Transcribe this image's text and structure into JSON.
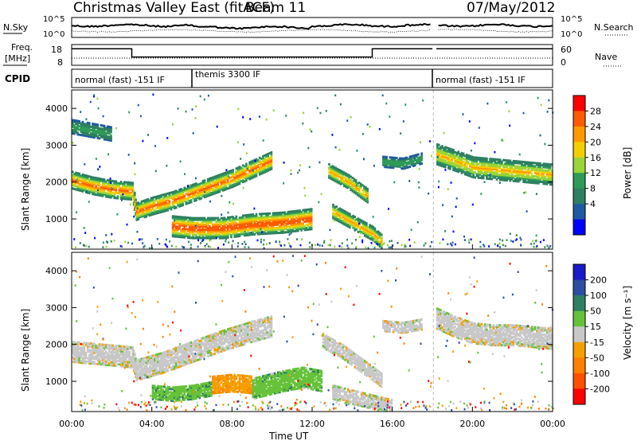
{
  "header": {
    "title": "Christmas Valley East (fitACF)",
    "beam": "Beam 11",
    "date": "07/May/2012"
  },
  "panels": {
    "nsky": {
      "left_label": "N.Sky",
      "left_ticks": [
        "10^5",
        "10^0"
      ],
      "right_label": "N.Search",
      "right_ticks": [
        "10^5",
        "10^0"
      ]
    },
    "freq": {
      "left_label_1": "Freq.",
      "left_label_2": "[MHz]",
      "left_ticks": [
        "18",
        "8"
      ],
      "right_label": "Nave",
      "right_ticks": [
        "60",
        "0"
      ],
      "step_levels_mhz": [
        {
          "from_h": 0.0,
          "to_h": 3.0,
          "mhz": 16
        },
        {
          "from_h": 3.0,
          "to_h": 15.0,
          "mhz": 12
        },
        {
          "from_h": 15.0,
          "to_h": 18.0,
          "mhz": 16
        },
        {
          "from_h": 18.2,
          "to_h": 24.0,
          "mhz": 16
        }
      ]
    },
    "cpid": {
      "label": "CPID",
      "segments": [
        {
          "label": "normal (fast) -151 IF",
          "from_h": 0.0,
          "to_h": 6.0
        },
        {
          "label": "themis 3300 IF",
          "from_h": 6.0,
          "to_h": 18.0
        },
        {
          "label": "normal (fast) -151 IF",
          "from_h": 18.0,
          "to_h": 24.0
        }
      ]
    }
  },
  "colorbars": {
    "power": {
      "label": "Power [dB]",
      "ticks": [
        "28",
        "24",
        "20",
        "16",
        "12",
        "8",
        "4"
      ],
      "colors": [
        "#ff0000",
        "#ff5a00",
        "#ff9a00",
        "#f2d000",
        "#9ad43a",
        "#2e9a58",
        "#2f7f62",
        "#1f5aa0",
        "#0000ff"
      ]
    },
    "velocity": {
      "label": "Velocity [m s⁻¹]",
      "ticks": [
        "200",
        "100",
        "50",
        "15",
        "-15",
        "-50",
        "-100",
        "-200"
      ],
      "colors": [
        "#1a1ac8",
        "#2d4fa0",
        "#2f7f62",
        "#67c23a",
        "#c8c8c8",
        "#f5a000",
        "#ff8000",
        "#ff5000",
        "#ff0000"
      ]
    }
  },
  "axes": {
    "ylabel": "Slant Range [km]",
    "xlabel": "Time UT",
    "x_ticks": [
      "00:00",
      "04:00",
      "08:00",
      "12:00",
      "16:00",
      "20:00",
      "00:00"
    ],
    "y_ticks": [
      "1000",
      "2000",
      "3000",
      "4000"
    ]
  },
  "chart_data": [
    {
      "type": "heatmap",
      "name": "Power",
      "x_unit": "hours UT",
      "y_unit": "km",
      "xlim": [
        0,
        24
      ],
      "ylim": [
        180,
        4500
      ],
      "bands": [
        {
          "points": [
            [
              0.0,
              2050
            ],
            [
              1.0,
              1900
            ],
            [
              2.0,
              1800
            ],
            [
              3.0,
              1750
            ],
            [
              3.2,
              1200
            ],
            [
              4.0,
              1350
            ],
            [
              5.0,
              1500
            ],
            [
              6.0,
              1700
            ],
            [
              7.0,
              1900
            ],
            [
              8.0,
              2100
            ],
            [
              9.0,
              2350
            ],
            [
              10.0,
              2600
            ]
          ],
          "width_km": 220,
          "value_db": 24
        },
        {
          "points": [
            [
              5.0,
              800
            ],
            [
              6.0,
              750
            ],
            [
              7.5,
              750
            ],
            [
              9.0,
              850
            ],
            [
              10.5,
              900
            ],
            [
              12.0,
              1000
            ]
          ],
          "width_km": 250,
          "value_db": 26
        },
        {
          "points": [
            [
              13.0,
              1200
            ],
            [
              14.0,
              900
            ],
            [
              15.0,
              600
            ],
            [
              15.5,
              350
            ]
          ],
          "width_km": 200,
          "value_db": 22
        },
        {
          "points": [
            [
              12.8,
              2300
            ],
            [
              13.8,
              2000
            ],
            [
              14.8,
              1600
            ]
          ],
          "width_km": 180,
          "value_db": 20
        },
        {
          "points": [
            [
              0.0,
              3500
            ],
            [
              1.0,
              3400
            ],
            [
              2.0,
              3300
            ]
          ],
          "width_km": 200,
          "value_db": 12
        },
        {
          "points": [
            [
              18.2,
              2750
            ],
            [
              19.0,
              2600
            ],
            [
              20.0,
              2400
            ],
            [
              21.0,
              2350
            ],
            [
              22.0,
              2300
            ],
            [
              23.0,
              2250
            ],
            [
              24.0,
              2200
            ]
          ],
          "width_km": 250,
          "value_db": 20
        },
        {
          "points": [
            [
              15.5,
              2550
            ],
            [
              16.5,
              2500
            ],
            [
              17.5,
              2650
            ]
          ],
          "width_km": 150,
          "value_db": 12
        }
      ]
    },
    {
      "type": "heatmap",
      "name": "Velocity",
      "x_unit": "hours UT",
      "y_unit": "km",
      "xlim": [
        0,
        24
      ],
      "ylim": [
        180,
        4500
      ],
      "bands": [
        {
          "points": [
            [
              0.0,
              1800
            ],
            [
              1.0,
              1750
            ],
            [
              2.0,
              1700
            ],
            [
              3.0,
              1650
            ],
            [
              3.2,
              1300
            ],
            [
              4.5,
              1500
            ],
            [
              6.0,
              1800
            ],
            [
              7.5,
              2100
            ],
            [
              9.0,
              2350
            ],
            [
              10.0,
              2500
            ]
          ],
          "width_km": 250,
          "value_ms": 0
        },
        {
          "points": [
            [
              4.0,
              700
            ],
            [
              5.0,
              650
            ],
            [
              6.0,
              700
            ],
            [
              7.0,
              800
            ]
          ],
          "width_km": 180,
          "value_ms": 40
        },
        {
          "points": [
            [
              7.0,
              900
            ],
            [
              8.0,
              950
            ],
            [
              9.0,
              900
            ]
          ],
          "width_km": 220,
          "value_ms": -40
        },
        {
          "points": [
            [
              9.0,
              800
            ],
            [
              10.5,
              1000
            ],
            [
              11.5,
              1100
            ],
            [
              12.5,
              1000
            ]
          ],
          "width_km": 250,
          "value_ms": 35
        },
        {
          "points": [
            [
              12.5,
              2100
            ],
            [
              13.5,
              1800
            ],
            [
              14.5,
              1400
            ],
            [
              15.5,
              1000
            ]
          ],
          "width_km": 200,
          "value_ms": 0
        },
        {
          "points": [
            [
              13.0,
              700
            ],
            [
              14.5,
              500
            ],
            [
              16.0,
              300
            ]
          ],
          "width_km": 180,
          "value_ms": 0
        },
        {
          "points": [
            [
              18.2,
              2700
            ],
            [
              19.0,
              2500
            ],
            [
              20.0,
              2300
            ],
            [
              21.0,
              2250
            ],
            [
              22.0,
              2250
            ],
            [
              23.0,
              2200
            ],
            [
              24.0,
              2150
            ]
          ],
          "width_km": 250,
          "value_ms": 0
        },
        {
          "points": [
            [
              15.5,
              2500
            ],
            [
              16.5,
              2450
            ],
            [
              17.5,
              2550
            ]
          ],
          "width_km": 150,
          "value_ms": 0
        }
      ]
    }
  ]
}
